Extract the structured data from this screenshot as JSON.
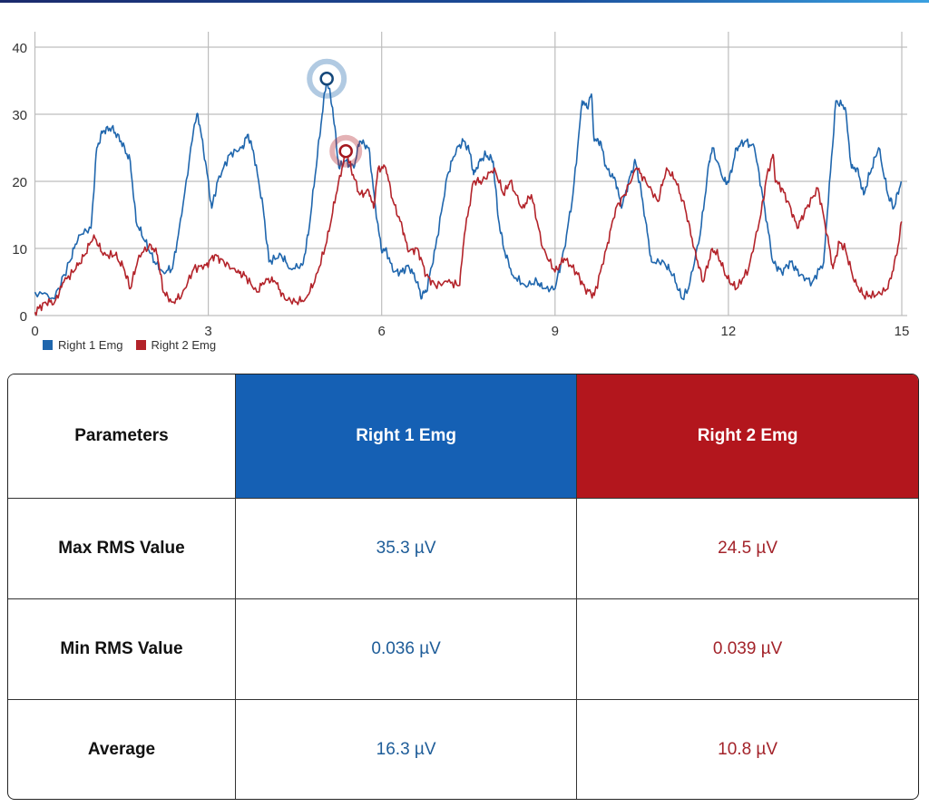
{
  "chart_data": {
    "type": "line",
    "xlim": [
      0,
      15
    ],
    "ylim": [
      0,
      40
    ],
    "xticks": [
      0,
      3,
      6,
      9,
      12,
      15
    ],
    "yticks": [
      0,
      10,
      20,
      30,
      40
    ],
    "grid": true,
    "legend_position": "bottom-left",
    "series": [
      {
        "name": "Right 1 Emg",
        "color": "#1f66ad",
        "x": [
          0,
          0.34,
          0.6,
          0.76,
          0.97,
          1.07,
          1.18,
          1.33,
          1.49,
          1.65,
          1.75,
          1.91,
          2.07,
          2.22,
          2.38,
          2.54,
          2.75,
          2.82,
          2.95,
          3.06,
          3.16,
          3.37,
          3.58,
          3.69,
          3.79,
          3.95,
          4.05,
          4.26,
          4.42,
          4.63,
          4.73,
          4.89,
          4.97,
          5.05,
          5.15,
          5.26,
          5.36,
          5.52,
          5.62,
          5.78,
          5.88,
          5.99,
          6.09,
          6.2,
          6.35,
          6.46,
          6.62,
          6.67,
          6.77,
          6.93,
          7.14,
          7.3,
          7.43,
          7.54,
          7.59,
          7.69,
          7.8,
          7.93,
          8.01,
          8.11,
          8.27,
          8.48,
          8.69,
          8.79,
          9.0,
          9.16,
          9.31,
          9.47,
          9.55,
          9.63,
          9.68,
          9.78,
          9.89,
          10.05,
          10.15,
          10.31,
          10.39,
          10.46,
          10.57,
          10.67,
          10.88,
          11.04,
          11.2,
          11.31,
          11.51,
          11.67,
          11.72,
          11.93,
          12.01,
          12.14,
          12.29,
          12.45,
          12.61,
          12.77,
          12.92,
          13.08,
          13.24,
          13.45,
          13.65,
          13.71,
          13.86,
          14.02,
          14.13,
          14.23,
          14.34,
          14.44,
          14.6,
          14.76,
          14.86,
          14.99
        ],
        "y": [
          3.5,
          2.5,
          8,
          12,
          13,
          25,
          27.5,
          28,
          26,
          23,
          14,
          11,
          8,
          6.5,
          7,
          15,
          28,
          30,
          23,
          16,
          20,
          24,
          25,
          27,
          24,
          16,
          8,
          9,
          7,
          7.5,
          12,
          24,
          30,
          35.3,
          31,
          22,
          23,
          22,
          26,
          25,
          17,
          10,
          9.5,
          6.5,
          6.5,
          7.5,
          5,
          3,
          3.5,
          10,
          21,
          25,
          26,
          24,
          21,
          23,
          24,
          23,
          15,
          10,
          6,
          4.5,
          5,
          4,
          4,
          10,
          18,
          32,
          31,
          33,
          26,
          26,
          22,
          20,
          16,
          21,
          23,
          20,
          14,
          8,
          8,
          6,
          2.5,
          4,
          12,
          23,
          25,
          20,
          20,
          25,
          26,
          25,
          17,
          8,
          6.5,
          8,
          6,
          5,
          8,
          15,
          32,
          31,
          22,
          22,
          18,
          21,
          25,
          18,
          16,
          20
        ],
        "marker": {
          "x": 5.05,
          "y": 35.3
        }
      },
      {
        "name": "Right 2 Emg",
        "color": "#b3232a",
        "x": [
          0,
          0.18,
          0.34,
          0.5,
          0.71,
          0.86,
          1.02,
          1.18,
          1.39,
          1.54,
          1.65,
          1.8,
          2.01,
          2.12,
          2.22,
          2.38,
          2.54,
          2.75,
          2.96,
          3.11,
          3.27,
          3.48,
          3.63,
          3.84,
          4.0,
          4.16,
          4.32,
          4.53,
          4.68,
          4.84,
          5.05,
          5.21,
          5.38,
          5.47,
          5.62,
          5.78,
          5.86,
          5.94,
          6.07,
          6.2,
          6.36,
          6.46,
          6.62,
          6.77,
          6.93,
          7.14,
          7.35,
          7.43,
          7.59,
          7.74,
          7.95,
          8.11,
          8.22,
          8.43,
          8.59,
          8.79,
          9.0,
          9.16,
          9.37,
          9.52,
          9.68,
          9.89,
          10.05,
          10.2,
          10.41,
          10.57,
          10.78,
          10.93,
          11.09,
          11.25,
          11.41,
          11.56,
          11.72,
          11.82,
          11.98,
          12.14,
          12.35,
          12.56,
          12.66,
          12.77,
          12.82,
          12.92,
          13.08,
          13.19,
          13.35,
          13.55,
          13.71,
          13.81,
          13.92,
          14.02,
          14.18,
          14.34,
          14.55,
          14.76,
          14.91,
          15.0
        ],
        "y": [
          0.5,
          2,
          2,
          5,
          7,
          9,
          12,
          9,
          9,
          7,
          4,
          9,
          10.5,
          9,
          3.5,
          2,
          3,
          7,
          7.5,
          9,
          8,
          6.5,
          6,
          3.5,
          5.5,
          5,
          2.5,
          2,
          2.5,
          5,
          11,
          18,
          24.5,
          22,
          18,
          18.5,
          16,
          22,
          22,
          17,
          13,
          9.5,
          10,
          6,
          4.5,
          5,
          4.5,
          12,
          20,
          20,
          22,
          18,
          20,
          16,
          18,
          10,
          6.5,
          8.5,
          6.5,
          4,
          3,
          10,
          16,
          18,
          22,
          20,
          17,
          22,
          20,
          16,
          10,
          5,
          10,
          9,
          5.5,
          4,
          7,
          15,
          20.5,
          24,
          20,
          19,
          16,
          13,
          16,
          19,
          12,
          7,
          11,
          10,
          5,
          3,
          3,
          4,
          9,
          14
        ],
        "marker": {
          "x": 5.38,
          "y": 24.5
        }
      }
    ]
  },
  "table": {
    "headers": [
      "Parameters",
      "Right 1 Emg",
      "Right 2 Emg"
    ],
    "header_colors": {
      "right1": "#1560b4",
      "right2": "#b3161d"
    },
    "rows": [
      {
        "label": "Max RMS Value",
        "right1": "35.3 µV",
        "right2": "24.5 µV"
      },
      {
        "label": "Min RMS Value",
        "right1": "0.036 µV",
        "right2": "0.039 µV"
      },
      {
        "label": "Average",
        "right1": "16.3 µV",
        "right2": "10.8 µV"
      }
    ]
  }
}
